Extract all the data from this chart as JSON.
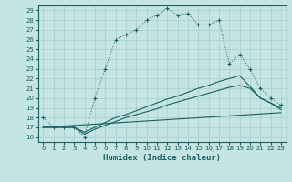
{
  "xlabel": "Humidex (Indice chaleur)",
  "background_color": "#c5e5e5",
  "grid_color": "#a8cccc",
  "line_color": "#1a6060",
  "xlim": [
    -0.5,
    23.5
  ],
  "ylim": [
    15.5,
    29.5
  ],
  "yticks": [
    16,
    17,
    18,
    19,
    20,
    21,
    22,
    23,
    24,
    25,
    26,
    27,
    28,
    29
  ],
  "xticks": [
    0,
    1,
    2,
    3,
    4,
    5,
    6,
    7,
    8,
    9,
    10,
    11,
    12,
    13,
    14,
    15,
    16,
    17,
    18,
    19,
    20,
    21,
    22,
    23
  ],
  "line1_x": [
    0,
    1,
    2,
    3,
    4,
    5,
    6,
    7,
    8,
    9,
    10,
    11,
    12,
    13,
    14,
    15,
    16,
    17,
    18,
    19,
    20,
    21,
    22,
    23
  ],
  "line1_y": [
    18,
    17,
    17,
    17,
    16,
    20,
    23,
    26,
    26.5,
    27,
    28,
    28.5,
    29.2,
    28.5,
    28.7,
    27.5,
    27.5,
    28,
    23.5,
    24.5,
    23,
    21,
    20,
    19.3
  ],
  "line2_x": [
    0,
    1,
    2,
    3,
    4,
    5,
    6,
    7,
    8,
    9,
    10,
    11,
    12,
    13,
    14,
    15,
    16,
    17,
    18,
    19,
    20,
    21,
    22,
    23
  ],
  "line2_y": [
    17,
    17,
    17,
    17,
    16.5,
    17,
    17.5,
    18,
    18.3,
    18.7,
    19.1,
    19.5,
    19.9,
    20.2,
    20.6,
    21.0,
    21.3,
    21.7,
    22.0,
    22.3,
    21.2,
    20.0,
    19.5,
    19.0
  ],
  "line3_x": [
    0,
    1,
    2,
    3,
    4,
    5,
    6,
    7,
    8,
    9,
    10,
    11,
    12,
    13,
    14,
    15,
    16,
    17,
    18,
    19,
    20,
    21,
    22,
    23
  ],
  "line3_y": [
    17,
    17,
    17,
    17,
    16.3,
    16.8,
    17.2,
    17.6,
    18.0,
    18.3,
    18.6,
    18.9,
    19.3,
    19.6,
    19.9,
    20.2,
    20.5,
    20.8,
    21.1,
    21.3,
    21.0,
    20.0,
    19.5,
    18.8
  ],
  "line4_x": [
    0,
    23
  ],
  "line4_y": [
    17,
    18.5
  ]
}
